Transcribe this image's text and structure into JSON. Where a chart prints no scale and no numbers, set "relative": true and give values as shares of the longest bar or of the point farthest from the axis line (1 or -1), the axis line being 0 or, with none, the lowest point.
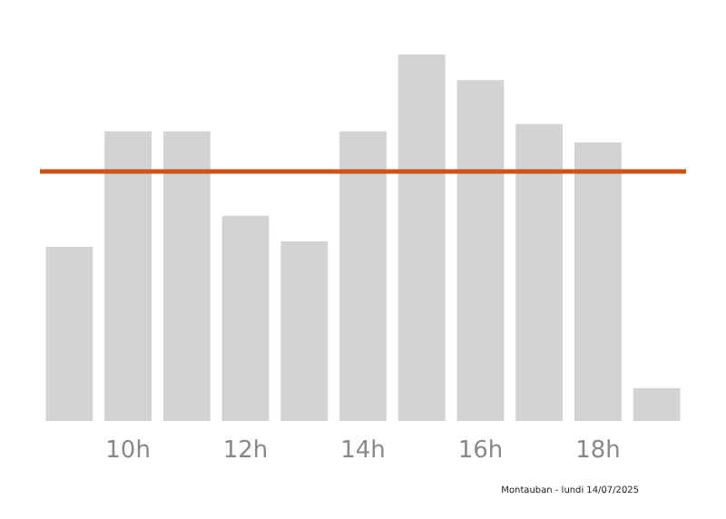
{
  "chart_data": {
    "type": "bar",
    "relative": true,
    "categories": [
      null,
      "10h",
      null,
      "12h",
      null,
      "14h",
      null,
      "16h",
      null,
      "18h",
      null
    ],
    "values": [
      0.475,
      0.79,
      0.79,
      0.56,
      0.49,
      0.79,
      1,
      0.93,
      0.81,
      0.76,
      0.09
    ],
    "color": "#d3d3d3",
    "ref_lines": [
      {
        "axis": "y",
        "value": 0.68,
        "color": "#c8561c"
      }
    ],
    "annotations": [
      "Montauban - lundi 14/07/2025"
    ]
  }
}
